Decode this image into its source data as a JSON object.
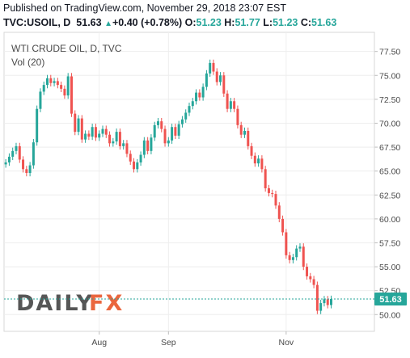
{
  "header": {
    "published": "Published on TradingView.com, November 29, 2018 23:07 EST",
    "symbol": "TVC:USOIL, D",
    "last": "51.63",
    "change_arrow": "▲",
    "change": "+0.40 (+0.78%)",
    "open_label": "O:",
    "open": "51.23",
    "high_label": "H:",
    "high": "51.77",
    "low_label": "L:",
    "low": "51.23",
    "close_label": "C:",
    "close": "51.63"
  },
  "legend": {
    "title": "WTI CRUDE OIL, D, TVC",
    "volume": "Vol (20)"
  },
  "price_tag": "51.63",
  "watermark": {
    "part1": "DAILY",
    "part2": "FX",
    "color1": "#444444",
    "color2": "#e8562a"
  },
  "colors": {
    "up": "#26a69a",
    "down": "#ef5350",
    "price_line": "#26a69a",
    "grid": "#eeeeee"
  },
  "chart_data": {
    "type": "candlestick",
    "title": "WTI CRUDE OIL, D, TVC",
    "y_ticks": [
      50.0,
      52.5,
      55.0,
      57.5,
      60.0,
      62.5,
      65.0,
      67.5,
      70.0,
      72.5,
      75.0,
      77.5
    ],
    "y_tick_labels": [
      "50.00",
      "52.50",
      "55.00",
      "57.50",
      "60.00",
      "62.50",
      "65.00",
      "67.50",
      "70.00",
      "72.50",
      "75.00",
      "77.50"
    ],
    "ylim": [
      48.25,
      79.5
    ],
    "x_tick_labels": [
      {
        "label": "Aug",
        "index": 27
      },
      {
        "label": "Sep",
        "index": 47
      },
      {
        "label": "Nov",
        "index": 81
      }
    ],
    "n_slots": 107,
    "last_price": 51.63,
    "closes": [
      65.9,
      66.5,
      67.1,
      67.6,
      66.2,
      65.2,
      64.8,
      65.6,
      68.0,
      71.5,
      73.3,
      74.0,
      74.7,
      74.2,
      74.4,
      74.0,
      73.6,
      72.9,
      74.9,
      71.0,
      69.1,
      70.5,
      68.3,
      68.9,
      68.6,
      69.6,
      68.5,
      68.9,
      69.4,
      68.8,
      67.9,
      68.1,
      69.1,
      67.6,
      67.9,
      66.8,
      66.0,
      65.2,
      65.9,
      66.7,
      68.2,
      67.1,
      68.5,
      69.8,
      70.2,
      69.4,
      67.9,
      68.2,
      69.6,
      68.7,
      69.9,
      70.4,
      71.1,
      71.8,
      72.3,
      73.2,
      72.7,
      73.8,
      75.2,
      76.3,
      75.4,
      74.3,
      75.0,
      73.1,
      71.5,
      72.3,
      71.5,
      69.8,
      68.8,
      69.2,
      67.6,
      66.6,
      65.8,
      66.3,
      65.2,
      63.2,
      62.7,
      62.6,
      61.4,
      60.0,
      58.6,
      56.2,
      55.7,
      56.0,
      56.9,
      57.1,
      55.0,
      54.0,
      53.7,
      53.1,
      50.4,
      51.2,
      51.6,
      51.0,
      51.63
    ]
  }
}
